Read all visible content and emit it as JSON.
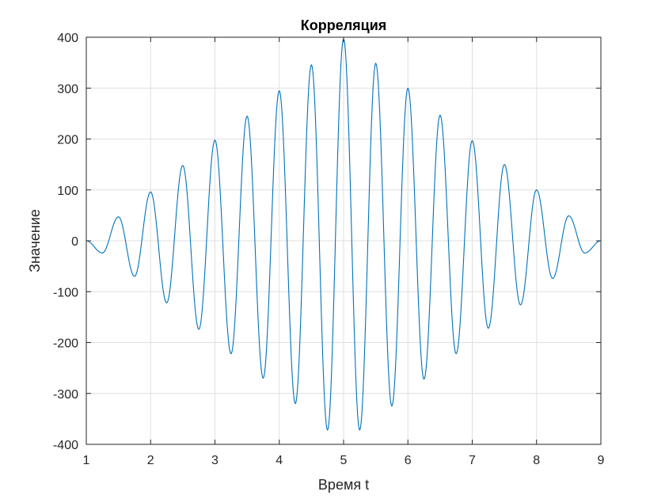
{
  "chart_data": {
    "type": "line",
    "title": "Корреляция",
    "xlabel": "Время t",
    "ylabel": "Значение",
    "xlim": [
      1,
      9
    ],
    "ylim": [
      -400,
      400
    ],
    "xticks": [
      1,
      2,
      3,
      4,
      5,
      6,
      7,
      8,
      9
    ],
    "yticks": [
      -400,
      -300,
      -200,
      -100,
      0,
      100,
      200,
      300,
      400
    ],
    "grid": true,
    "series": [
      {
        "color": "#0072BD",
        "peak_value": 400,
        "center": 5,
        "period": 1,
        "x_start": 1,
        "x_end": 9,
        "extrema": [
          {
            "x": 1.25,
            "y": -24
          },
          {
            "x": 1.5,
            "y": 47
          },
          {
            "x": 1.75,
            "y": -70
          },
          {
            "x": 2.0,
            "y": 96
          },
          {
            "x": 2.25,
            "y": -122
          },
          {
            "x": 2.5,
            "y": 148
          },
          {
            "x": 2.75,
            "y": -174
          },
          {
            "x": 3.0,
            "y": 198
          },
          {
            "x": 3.25,
            "y": -222
          },
          {
            "x": 3.5,
            "y": 245
          },
          {
            "x": 3.75,
            "y": -270
          },
          {
            "x": 4.0,
            "y": 295
          },
          {
            "x": 4.25,
            "y": -320
          },
          {
            "x": 4.5,
            "y": 346
          },
          {
            "x": 4.75,
            "y": -372
          },
          {
            "x": 5.0,
            "y": 397
          },
          {
            "x": 5.25,
            "y": -372
          },
          {
            "x": 5.5,
            "y": 349
          },
          {
            "x": 5.75,
            "y": -325
          },
          {
            "x": 6.0,
            "y": 300
          },
          {
            "x": 6.25,
            "y": -272
          },
          {
            "x": 6.5,
            "y": 247
          },
          {
            "x": 6.75,
            "y": -222
          },
          {
            "x": 7.0,
            "y": 197
          },
          {
            "x": 7.25,
            "y": -172
          },
          {
            "x": 7.5,
            "y": 150
          },
          {
            "x": 7.75,
            "y": -126
          },
          {
            "x": 8.0,
            "y": 100
          },
          {
            "x": 8.25,
            "y": -74
          },
          {
            "x": 8.5,
            "y": 49
          },
          {
            "x": 8.75,
            "y": -24
          }
        ]
      }
    ]
  }
}
